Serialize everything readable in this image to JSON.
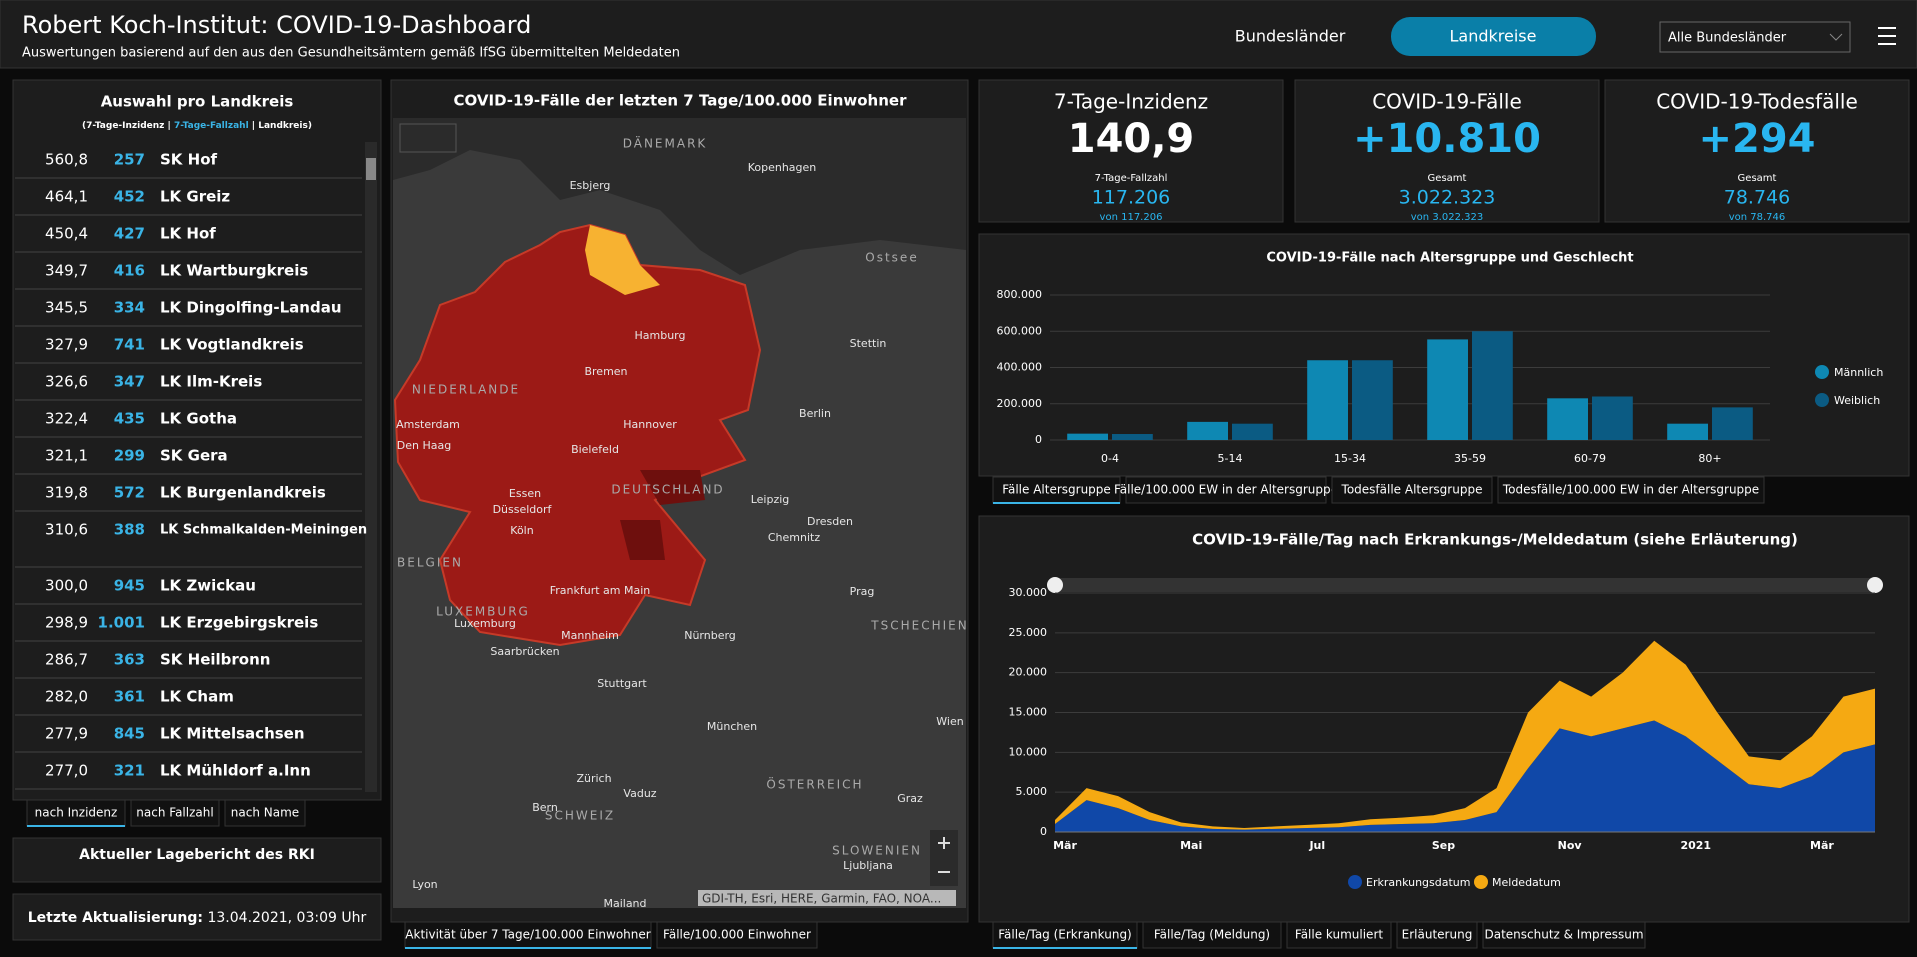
{
  "header": {
    "title": "Robert Koch-Institut: COVID-19-Dashboard",
    "subtitle": "Auswertungen basierend auf den aus den Gesundheitsämtern gemäß IfSG übermittelten Meldedaten",
    "nav": [
      "Bundesländer",
      "Landkreise"
    ],
    "dropdown": "Alle Bundesländer"
  },
  "sidebar": {
    "title": "Auswahl pro Landkreis",
    "legend": [
      "(7-Tage-Inzidenz | ",
      "7-Tage-Fallzahl",
      " | Landkreis)"
    ],
    "rows": [
      [
        "560,8",
        "257",
        "SK Hof"
      ],
      [
        "464,1",
        "452",
        "LK Greiz"
      ],
      [
        "450,4",
        "427",
        "LK Hof"
      ],
      [
        "349,7",
        "416",
        "LK Wartburgkreis"
      ],
      [
        "345,5",
        "334",
        "LK Dingolfing-Landau"
      ],
      [
        "327,9",
        "741",
        "LK Vogtlandkreis"
      ],
      [
        "326,6",
        "347",
        "LK Ilm-Kreis"
      ],
      [
        "322,4",
        "435",
        "LK Gotha"
      ],
      [
        "321,1",
        "299",
        "SK Gera"
      ],
      [
        "319,8",
        "572",
        "LK Burgenlandkreis"
      ],
      [
        "310,6",
        "388",
        "LK Schmalkalden-Meiningen"
      ],
      [
        "300,0",
        "945",
        "LK Zwickau"
      ],
      [
        "298,9",
        "1.001",
        "LK Erzgebirgskreis"
      ],
      [
        "286,7",
        "363",
        "SK Heilbronn"
      ],
      [
        "282,0",
        "361",
        "LK Cham"
      ],
      [
        "277,9",
        "845",
        "LK Mittelsachsen"
      ],
      [
        "277,0",
        "321",
        "LK Mühldorf a.Inn"
      ]
    ],
    "tabs": [
      "nach Inzidenz",
      "nach Fallzahl",
      "nach Name"
    ],
    "report": "Aktueller Lagebericht des RKI",
    "update_label": "Letzte Aktualisierung:",
    "update_value": "13.04.2021, 03:09 Uhr"
  },
  "map": {
    "title": "COVID-19-Fälle der letzten 7 Tage/100.000 Einwohner",
    "labels": [
      "DÄNEMARK",
      "Kopenhagen",
      "Esbjerg",
      "Ostsee",
      "Hamburg",
      "Stettin",
      "Bremen",
      "NIEDERLANDE",
      "Amsterdam",
      "Den Haag",
      "Hannover",
      "Berlin",
      "Bielefeld",
      "DEUTSCHLAND",
      "Essen",
      "Düsseldorf",
      "Leipzig",
      "Dresden",
      "Köln",
      "Chemnitz",
      "BELGIEN",
      "Frankfurt am Main",
      "Prag",
      "LUXEMBURG",
      "Luxemburg",
      "Mannheim",
      "Nürnberg",
      "TSCHECHIEN",
      "Saarbrücken",
      "Stuttgart",
      "Wien",
      "München",
      "Zürich",
      "Vaduz",
      "ÖSTERREICH",
      "Graz",
      "Bern",
      "SCHWEIZ",
      "SLOWENIEN",
      "Ljubljana",
      "Lyon",
      "Mailand"
    ],
    "attribution": "GDI-TH, Esri, HERE, Garmin, FAO, NOA...",
    "tabs": [
      "Aktivität über 7 Tage/100.000 Einwohner",
      "Fälle/100.000 Einwohner"
    ]
  },
  "kpis": [
    {
      "label": "7-Tage-Inzidenz",
      "value": "140,9",
      "sublabel": "7-Tage-Fallzahl",
      "subvalue": "117.206",
      "note": "von 117.206"
    },
    {
      "label": "COVID-19-Fälle",
      "value": "+10.810",
      "sublabel": "Gesamt",
      "subvalue": "3.022.323",
      "note": "von 3.022.323"
    },
    {
      "label": "COVID-19-Todesfälle",
      "value": "+294",
      "sublabel": "Gesamt",
      "subvalue": "78.746",
      "note": "von 78.746"
    }
  ],
  "chart_data": [
    {
      "type": "bar",
      "title": "COVID-19-Fälle nach Altersgruppe und Geschlecht",
      "categories": [
        "0-4",
        "5-14",
        "15-34",
        "35-59",
        "60-79",
        "80+"
      ],
      "series": [
        {
          "name": "Männlich",
          "color": "#0e88b3",
          "values": [
            35000,
            100000,
            440000,
            555000,
            230000,
            90000
          ]
        },
        {
          "name": "Weiblich",
          "color": "#0b5b83",
          "values": [
            33000,
            90000,
            440000,
            600000,
            240000,
            180000
          ]
        }
      ],
      "ylim": [
        0,
        800000
      ],
      "yticks": [
        0,
        {
          "value": 200000,
          "label": "200.000"
        },
        {
          "value": 400000,
          "label": "400.000"
        },
        {
          "value": 600000,
          "label": "600.000"
        },
        {
          "value": 800000,
          "label": "800.000"
        }
      ],
      "grid": true,
      "legend": "right",
      "tabs": [
        "Fälle Altersgruppe",
        "Fälle/100.000 EW in der Altersgruppe",
        "Todesfälle Altersgruppe",
        "Todesfälle/100.000 EW in der Altersgruppe"
      ]
    },
    {
      "type": "stacked-area",
      "title": "COVID-19-Fälle/Tag nach Erkrankungs-/Meldedatum (siehe Erläuterung)",
      "categories": [
        "Mär",
        null,
        null,
        null,
        "Mai",
        null,
        null,
        null,
        "Jul",
        null,
        null,
        null,
        "Sep",
        null,
        null,
        null,
        "Nov",
        null,
        null,
        null,
        "2021",
        null,
        null,
        null,
        "Mär",
        null,
        null
      ],
      "series": [
        {
          "name": "Erkrankungsdatum",
          "color": "#1048a8",
          "values": [
            1000,
            4000,
            3000,
            1500,
            700,
            400,
            300,
            400,
            500,
            600,
            900,
            1000,
            1100,
            1500,
            2500,
            8000,
            13000,
            12000,
            13000,
            14000,
            12000,
            9000,
            6000,
            5500,
            7000,
            10000,
            11000
          ]
        },
        {
          "name": "Meldedatum",
          "color": "#f5a912",
          "values": [
            500,
            1500,
            1500,
            1000,
            500,
            300,
            200,
            300,
            400,
            500,
            700,
            800,
            1000,
            1500,
            3000,
            7000,
            6000,
            5000,
            7000,
            10000,
            9000,
            6000,
            3500,
            3500,
            5000,
            7000,
            7000
          ]
        }
      ],
      "ylim": [
        0,
        30000
      ],
      "yticks": [
        0,
        {
          "value": 5000,
          "label": "5.000"
        },
        {
          "value": 10000,
          "label": "10.000"
        },
        {
          "value": 15000,
          "label": "15.000"
        },
        {
          "value": 20000,
          "label": "20.000"
        },
        {
          "value": 25000,
          "label": "25.000"
        },
        {
          "value": 30000,
          "label": "30.000"
        }
      ],
      "grid": true,
      "legend": "bottom",
      "tabs": [
        "Fälle/Tag (Erkrankung)",
        "Fälle/Tag (Meldung)",
        "Fälle kumuliert",
        "Erläuterung",
        "Datenschutz & Impressum"
      ]
    }
  ]
}
